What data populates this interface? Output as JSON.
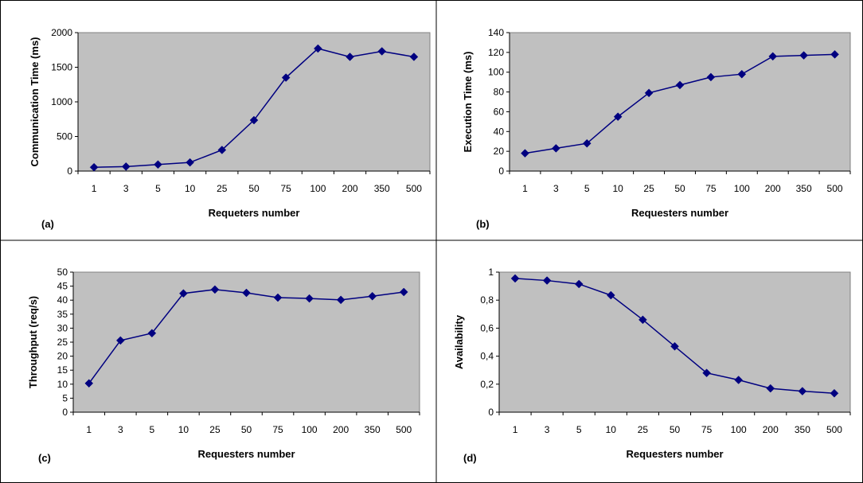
{
  "chart_data": [
    {
      "type": "line",
      "panel_label": "(a)",
      "categories": [
        "1",
        "3",
        "5",
        "10",
        "25",
        "50",
        "75",
        "100",
        "200",
        "350",
        "500"
      ],
      "series": [
        {
          "values": [
            55,
            65,
            95,
            125,
            305,
            735,
            1350,
            1770,
            1650,
            1730,
            1650
          ]
        }
      ],
      "xlabel": "Requeters number",
      "ylabel": "Communication Time (ms)",
      "ylim": [
        0,
        2000
      ],
      "yticks": [
        0,
        500,
        1000,
        1500,
        2000
      ],
      "ytick_labels": [
        "0",
        "500",
        "1000",
        "1500",
        "2000"
      ],
      "grid": false,
      "legend": "none",
      "plot_bg": "#c0c0c0",
      "line_color": "#000080"
    },
    {
      "type": "line",
      "panel_label": "(b)",
      "categories": [
        "1",
        "3",
        "5",
        "10",
        "25",
        "50",
        "75",
        "100",
        "200",
        "350",
        "500"
      ],
      "series": [
        {
          "values": [
            18,
            23,
            28,
            55,
            79,
            87,
            95,
            98,
            116,
            117,
            118
          ]
        }
      ],
      "xlabel": "Requesters number",
      "ylabel": "Execution Time (ms)",
      "ylim": [
        0,
        140
      ],
      "yticks": [
        0,
        20,
        40,
        60,
        80,
        100,
        120,
        140
      ],
      "ytick_labels": [
        "0",
        "20",
        "40",
        "60",
        "80",
        "100",
        "120",
        "140"
      ],
      "grid": false,
      "legend": "none",
      "plot_bg": "#c0c0c0",
      "line_color": "#000080"
    },
    {
      "type": "line",
      "panel_label": "(c)",
      "categories": [
        "1",
        "3",
        "5",
        "10",
        "25",
        "50",
        "75",
        "100",
        "200",
        "350",
        "500"
      ],
      "series": [
        {
          "values": [
            10.3,
            25.6,
            28.2,
            42.4,
            43.8,
            42.6,
            40.9,
            40.6,
            40.1,
            41.4,
            42.9
          ]
        }
      ],
      "xlabel": "Requesters number",
      "ylabel": "Throughput (req/s)",
      "ylim": [
        0,
        50
      ],
      "yticks": [
        0,
        5,
        10,
        15,
        20,
        25,
        30,
        35,
        40,
        45,
        50
      ],
      "ytick_labels": [
        "0",
        "5",
        "10",
        "15",
        "20",
        "25",
        "30",
        "35",
        "40",
        "45",
        "50"
      ],
      "grid": false,
      "legend": "none",
      "plot_bg": "#c0c0c0",
      "line_color": "#000080"
    },
    {
      "type": "line",
      "panel_label": "(d)",
      "categories": [
        "1",
        "3",
        "5",
        "10",
        "25",
        "50",
        "75",
        "100",
        "200",
        "350",
        "500"
      ],
      "series": [
        {
          "values": [
            0.955,
            0.94,
            0.915,
            0.835,
            0.66,
            0.47,
            0.28,
            0.23,
            0.17,
            0.15,
            0.135
          ]
        }
      ],
      "xlabel": "Requesters number",
      "ylabel": "Availability",
      "ylim": [
        0,
        1
      ],
      "yticks": [
        0,
        0.2,
        0.4,
        0.6,
        0.8,
        1
      ],
      "ytick_labels": [
        "0",
        "0,2",
        "0,4",
        "0,6",
        "0,8",
        "1"
      ],
      "grid": false,
      "legend": "none",
      "plot_bg": "#c0c0c0",
      "line_color": "#000080"
    }
  ]
}
